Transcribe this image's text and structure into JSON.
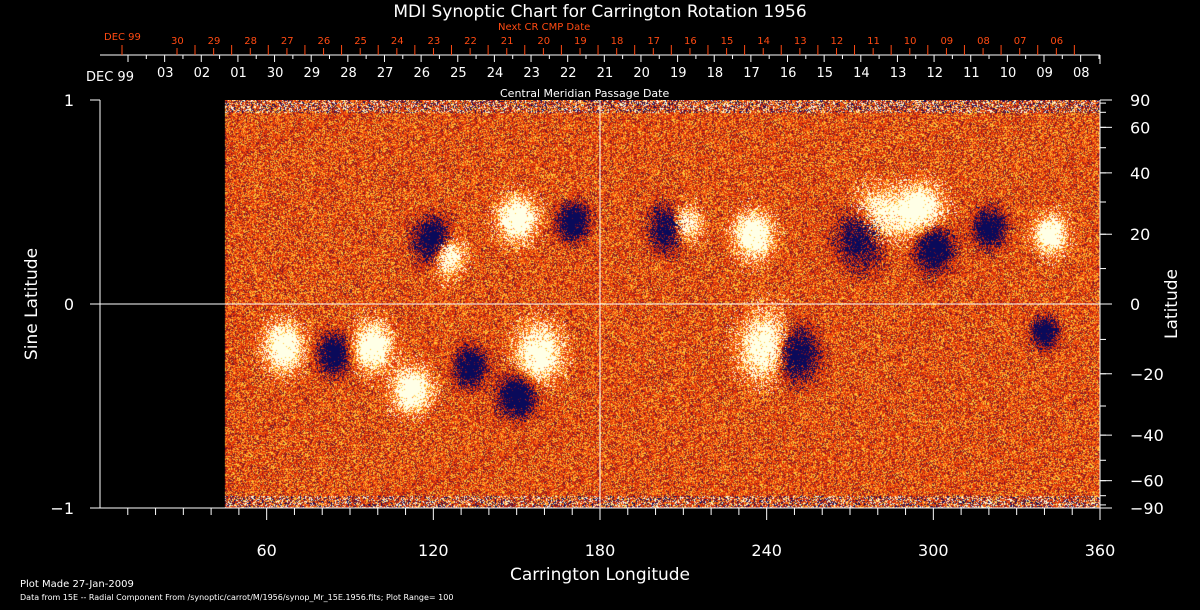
{
  "chart_data": {
    "type": "heatmap",
    "title": "MDI Synoptic Chart for Carrington Rotation 1956",
    "xlabel": "Carrington Longitude",
    "ylabel_left": "Sine Latitude",
    "ylabel_right": "Latitude",
    "xlim": [
      0,
      360
    ],
    "ylim": [
      -1,
      1
    ],
    "x_ticks": [
      "60",
      "120",
      "180",
      "240",
      "300",
      "360"
    ],
    "x_tick_values": [
      60,
      120,
      180,
      240,
      300,
      360
    ],
    "y_left_ticks": [
      "1",
      "0",
      "−1"
    ],
    "y_left_tick_values": [
      1,
      0,
      -1
    ],
    "y_right_ticks": [
      "90",
      "60",
      "40",
      "20",
      "0",
      "−20",
      "−40",
      "−60",
      "−90"
    ],
    "y_right_tick_values": [
      90,
      60,
      40,
      20,
      0,
      -20,
      -40,
      -60,
      -90
    ],
    "data_start_longitude": 45,
    "top_axis": {
      "label": "Central Meridian Passage Date",
      "month_label": "DEC 99",
      "dates": [
        "03",
        "02",
        "01",
        "30",
        "29",
        "28",
        "27",
        "26",
        "25",
        "24",
        "23",
        "22",
        "21",
        "20",
        "19",
        "18",
        "17",
        "16",
        "15",
        "14",
        "13",
        "12",
        "11",
        "10",
        "09",
        "08"
      ]
    },
    "next_cr_axis": {
      "label": "Next CR CMP Date",
      "month_label": "DEC 99",
      "dates": [
        "30",
        "29",
        "28",
        "27",
        "26",
        "25",
        "24",
        "23",
        "22",
        "21",
        "20",
        "19",
        "18",
        "17",
        "16",
        "15",
        "14",
        "13",
        "12",
        "11",
        "10",
        "09",
        "08",
        "07",
        "06"
      ]
    },
    "colors": {
      "positive": "#ffffff",
      "mid": "#ff5a10",
      "negative": "#10105a",
      "next_cr": "#ff4a12"
    }
  },
  "footer": {
    "plot_made": "Plot Made 27-Jan-2009",
    "data_source": "Data from 15E -- Radial Component From /synoptic/carrot/M/1956/synop_Mr_15E.1956.fits; Plot Range=  100"
  }
}
